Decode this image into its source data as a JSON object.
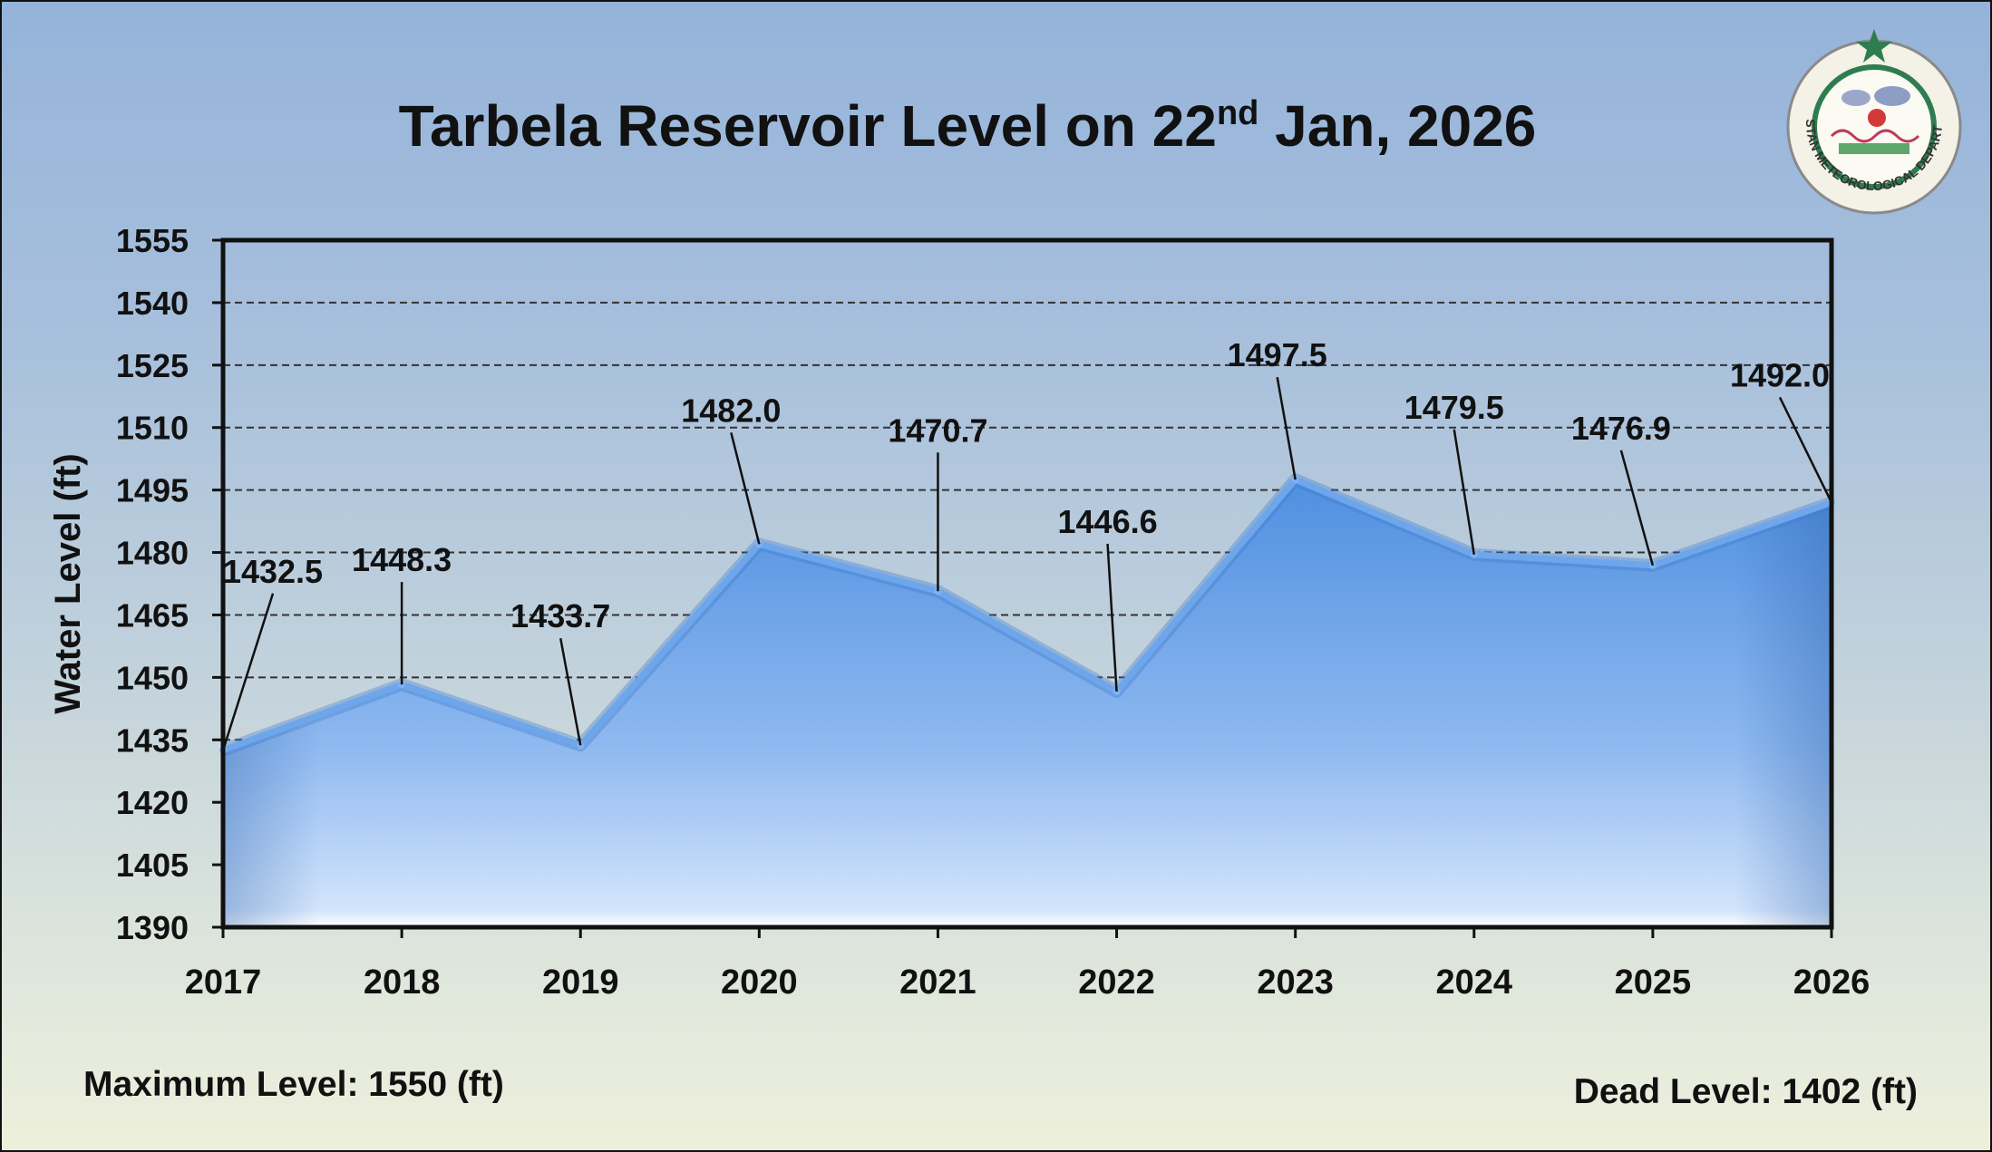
{
  "title": {
    "main": "Tarbela Reservoir Level on 22",
    "superscript": "nd",
    "suffix": " Jan, 2026"
  },
  "logo": {
    "text": "PAKISTAN METEOROLOGICAL DEPARTMENT",
    "icon": "pmd-emblem-icon"
  },
  "footnotes": {
    "max_level": "Maximum Level: 1550 (ft)",
    "dead_level": "Dead Level: 1402 (ft)"
  },
  "colors": {
    "area_top": "#4f8fe0",
    "area_bottom": "#d2e4fb",
    "line": "#6ea6ec",
    "axis": "#111111"
  },
  "chart_data": {
    "type": "area",
    "title": "Tarbela Reservoir Level on 22nd Jan, 2026",
    "xlabel": "",
    "ylabel": "Water Level (ft)",
    "categories": [
      "2017",
      "2018",
      "2019",
      "2020",
      "2021",
      "2022",
      "2023",
      "2024",
      "2025",
      "2026"
    ],
    "values": [
      1432.5,
      1448.3,
      1433.7,
      1482.0,
      1470.7,
      1446.6,
      1497.5,
      1479.5,
      1476.9,
      1492.0
    ],
    "data_labels": [
      "1432.5",
      "1448.3",
      "1433.7",
      "1482.0",
      "1470.7",
      "1446.6",
      "1497.5",
      "1479.5",
      "1476.9",
      "1492.0"
    ],
    "ylim": [
      1390,
      1555
    ],
    "yticks": [
      "1390",
      "1405",
      "1420",
      "1435",
      "1450",
      "1465",
      "1480",
      "1495",
      "1510",
      "1525",
      "1540",
      "1555"
    ],
    "grid": true,
    "grid_style": "dashed"
  }
}
